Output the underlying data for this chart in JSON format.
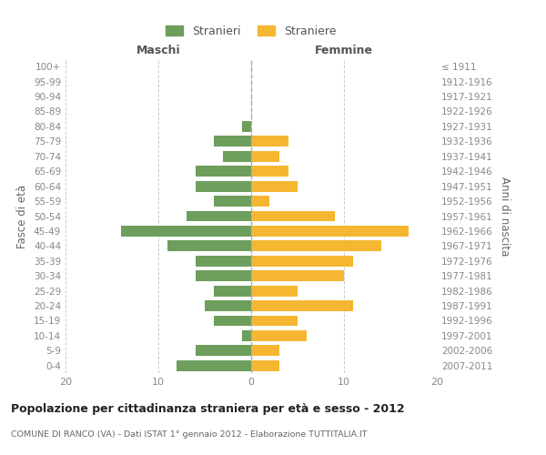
{
  "age_groups": [
    "0-4",
    "5-9",
    "10-14",
    "15-19",
    "20-24",
    "25-29",
    "30-34",
    "35-39",
    "40-44",
    "45-49",
    "50-54",
    "55-59",
    "60-64",
    "65-69",
    "70-74",
    "75-79",
    "80-84",
    "85-89",
    "90-94",
    "95-99",
    "100+"
  ],
  "birth_years": [
    "2007-2011",
    "2002-2006",
    "1997-2001",
    "1992-1996",
    "1987-1991",
    "1982-1986",
    "1977-1981",
    "1972-1976",
    "1967-1971",
    "1962-1966",
    "1957-1961",
    "1952-1956",
    "1947-1951",
    "1942-1946",
    "1937-1941",
    "1932-1936",
    "1927-1931",
    "1922-1926",
    "1917-1921",
    "1912-1916",
    "≤ 1911"
  ],
  "maschi": [
    8,
    6,
    1,
    4,
    5,
    4,
    6,
    6,
    9,
    14,
    7,
    4,
    6,
    6,
    3,
    4,
    1,
    0,
    0,
    0,
    0
  ],
  "femmine": [
    3,
    3,
    6,
    5,
    11,
    5,
    10,
    11,
    14,
    17,
    9,
    2,
    5,
    4,
    3,
    4,
    0,
    0,
    0,
    0,
    0
  ],
  "maschi_color": "#6d9e5c",
  "femmine_color": "#f5b731",
  "background_color": "#ffffff",
  "grid_color": "#cccccc",
  "title": "Popolazione per cittadinanza straniera per età e sesso - 2012",
  "subtitle": "COMUNE DI RANCO (VA) - Dati ISTAT 1° gennaio 2012 - Elaborazione TUTTITALIA.IT",
  "ylabel_left": "Fasce di età",
  "ylabel_right": "Anni di nascita",
  "xlabel_maschi": "Maschi",
  "xlabel_femmine": "Femmine",
  "legend_stranieri": "Stranieri",
  "legend_straniere": "Straniere",
  "xlim": 20
}
